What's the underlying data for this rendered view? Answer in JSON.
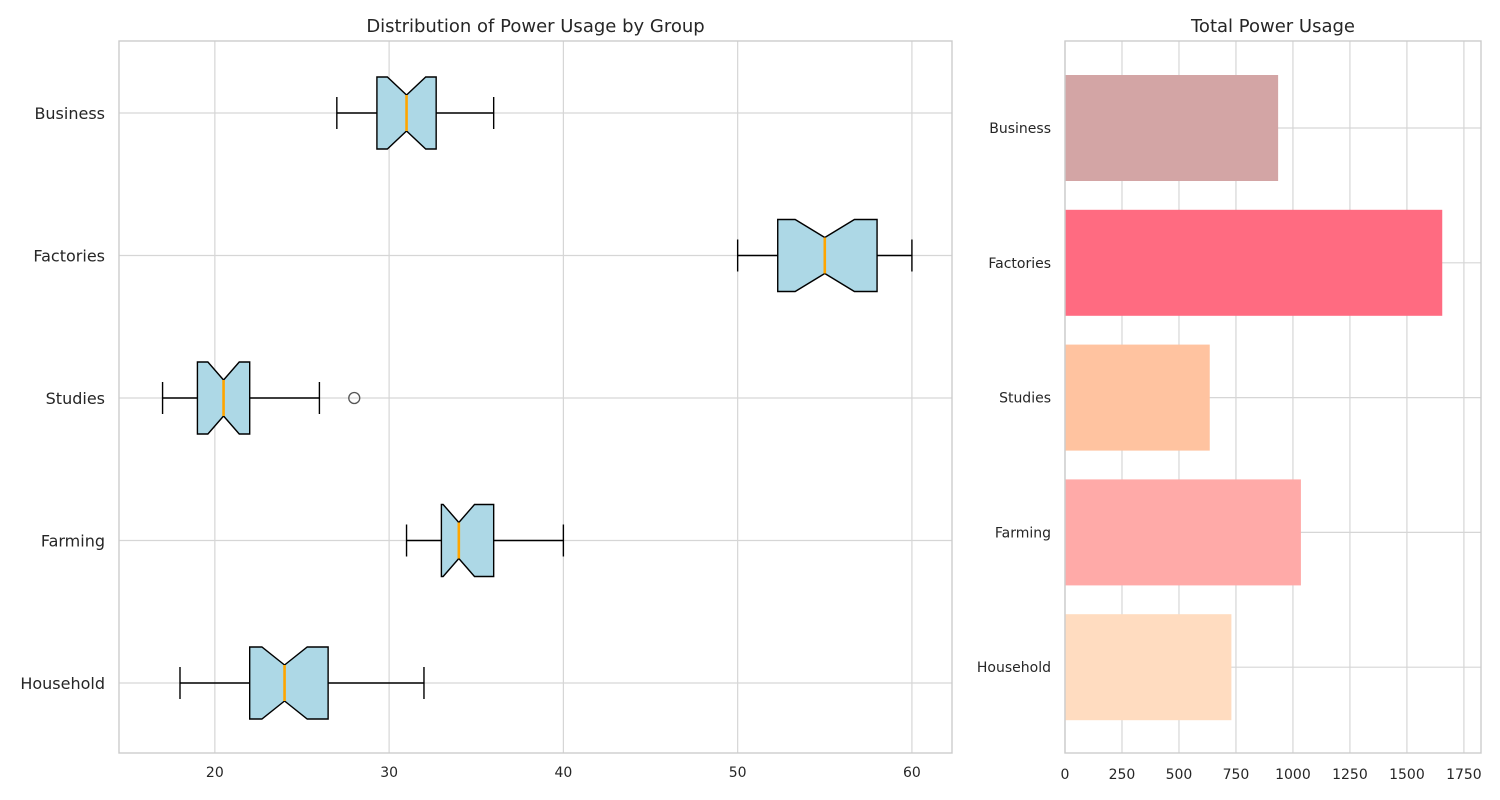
{
  "chart_data": [
    {
      "type": "box",
      "orientation": "horizontal",
      "notched": true,
      "title": "Distribution of Power Usage by Group",
      "xlabel": "",
      "ylabel": "",
      "xlim": [
        14.5,
        62.3
      ],
      "xticks": [
        20,
        30,
        40,
        50,
        60
      ],
      "grid": true,
      "box_color": "#add8e6",
      "median_color": "#ffa500",
      "categories": [
        "Business",
        "Factories",
        "Studies",
        "Farming",
        "Household"
      ],
      "boxes": [
        {
          "name": "Business",
          "whislo": 27,
          "q1": 29.3,
          "med": 31,
          "q3": 32.7,
          "whishi": 36,
          "notch_lo": 29.9,
          "notch_hi": 32.1,
          "fliers": []
        },
        {
          "name": "Factories",
          "whislo": 50,
          "q1": 52.3,
          "med": 55,
          "q3": 58,
          "whishi": 60,
          "notch_lo": 53.3,
          "notch_hi": 56.7,
          "fliers": []
        },
        {
          "name": "Studies",
          "whislo": 17,
          "q1": 19,
          "med": 20.5,
          "q3": 22,
          "whishi": 26,
          "notch_lo": 19.6,
          "notch_hi": 21.4,
          "fliers": [
            28
          ]
        },
        {
          "name": "Farming",
          "whislo": 31,
          "q1": 33,
          "med": 34,
          "q3": 36,
          "whishi": 40,
          "notch_lo": 33.1,
          "notch_hi": 34.9,
          "fliers": []
        },
        {
          "name": "Household",
          "whislo": 18,
          "q1": 22,
          "med": 24,
          "q3": 26.5,
          "whishi": 32,
          "notch_lo": 22.7,
          "notch_hi": 25.3,
          "fliers": []
        }
      ]
    },
    {
      "type": "bar",
      "orientation": "horizontal",
      "title": "Total Power Usage",
      "xlabel": "",
      "ylabel": "",
      "xlim": [
        0,
        1825
      ],
      "xticks": [
        0,
        250,
        500,
        750,
        1000,
        1250,
        1500,
        1750
      ],
      "grid": true,
      "categories": [
        "Business",
        "Factories",
        "Studies",
        "Farming",
        "Household"
      ],
      "values": [
        935,
        1655,
        635,
        1035,
        730
      ],
      "colors": [
        "#d3a5a5",
        "#ff6b81",
        "#ffc3a0",
        "#ffaaa8",
        "#ffdcc0"
      ]
    }
  ]
}
